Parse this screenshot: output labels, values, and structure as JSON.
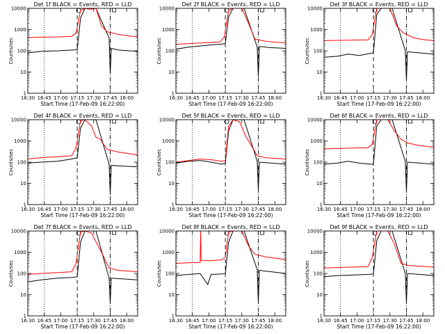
{
  "chart_data": {
    "type": "line",
    "x_start_label": "Start Time (17-Feb-09 16:22:00)",
    "x_ticks": [
      "16:30",
      "16:45",
      "17:00",
      "17:15",
      "17:30",
      "17:45",
      "18:00"
    ],
    "xlim_min": [
      8,
      108
    ],
    "ylim": [
      1,
      10000
    ],
    "yscale": "log",
    "ylabel": "Counts/sec",
    "y_ticks": [
      "1",
      "10",
      "100",
      "1000",
      "10000"
    ],
    "markers": {
      "solid_circle_label": "O",
      "square_label": "□",
      "dotted_min": 23,
      "dashed_min": 53,
      "dashdot_min": 83
    },
    "series_colors": {
      "events": "#000000",
      "lld": "#ff0000"
    },
    "panels": [
      {
        "title": "Det 1f BLACK = Events, RED = LLD",
        "events": [
          [
            8,
            80
          ],
          [
            20,
            95
          ],
          [
            35,
            100
          ],
          [
            50,
            110
          ],
          [
            53,
            115
          ],
          [
            56,
            3500
          ],
          [
            60,
            10000
          ],
          [
            70,
            10000
          ],
          [
            82,
            400
          ],
          [
            83,
            8
          ],
          [
            84,
            130
          ],
          [
            90,
            110
          ],
          [
            100,
            100
          ],
          [
            108,
            95
          ]
        ],
        "lld": [
          [
            8,
            420
          ],
          [
            20,
            440
          ],
          [
            35,
            450
          ],
          [
            48,
            480
          ],
          [
            52,
            700
          ],
          [
            56,
            8000
          ],
          [
            60,
            14000
          ],
          [
            65,
            9000
          ],
          [
            70,
            14000
          ],
          [
            75,
            1500
          ],
          [
            80,
            800
          ],
          [
            90,
            600
          ],
          [
            100,
            500
          ],
          [
            108,
            450
          ]
        ]
      },
      {
        "title": "Det 2f BLACK = Events, RED = LLD",
        "events": [
          [
            8,
            120
          ],
          [
            20,
            150
          ],
          [
            35,
            180
          ],
          [
            50,
            210
          ],
          [
            53,
            220
          ],
          [
            56,
            4000
          ],
          [
            60,
            10000
          ],
          [
            70,
            10000
          ],
          [
            82,
            150
          ],
          [
            83,
            6
          ],
          [
            84,
            160
          ],
          [
            95,
            140
          ],
          [
            108,
            130
          ]
        ],
        "lld": [
          [
            8,
            200
          ],
          [
            20,
            220
          ],
          [
            35,
            240
          ],
          [
            48,
            260
          ],
          [
            52,
            450
          ],
          [
            56,
            8000
          ],
          [
            60,
            14000
          ],
          [
            68,
            10000
          ],
          [
            74,
            2000
          ],
          [
            80,
            350
          ],
          [
            90,
            280
          ],
          [
            100,
            250
          ],
          [
            108,
            240
          ]
        ]
      },
      {
        "title": "Det 3f BLACK = Events, RED = LLD",
        "events": [
          [
            8,
            50
          ],
          [
            20,
            55
          ],
          [
            30,
            70
          ],
          [
            40,
            60
          ],
          [
            50,
            75
          ],
          [
            53,
            80
          ],
          [
            56,
            5000
          ],
          [
            60,
            10000
          ],
          [
            70,
            10000
          ],
          [
            82,
            100
          ],
          [
            83,
            4
          ],
          [
            84,
            90
          ],
          [
            95,
            80
          ],
          [
            108,
            70
          ]
        ],
        "lld": [
          [
            8,
            300
          ],
          [
            20,
            310
          ],
          [
            35,
            320
          ],
          [
            48,
            330
          ],
          [
            52,
            600
          ],
          [
            56,
            10000
          ],
          [
            60,
            14000
          ],
          [
            68,
            10000
          ],
          [
            74,
            1500
          ],
          [
            80,
            700
          ],
          [
            90,
            400
          ],
          [
            100,
            330
          ],
          [
            108,
            300
          ]
        ]
      },
      {
        "title": "Det 4f BLACK = Events, RED = LLD",
        "events": [
          [
            8,
            90
          ],
          [
            20,
            100
          ],
          [
            35,
            110
          ],
          [
            48,
            140
          ],
          [
            53,
            160
          ],
          [
            56,
            4000
          ],
          [
            60,
            10000
          ],
          [
            70,
            10000
          ],
          [
            82,
            80
          ],
          [
            83,
            3
          ],
          [
            84,
            70
          ],
          [
            95,
            65
          ],
          [
            108,
            60
          ]
        ],
        "lld": [
          [
            8,
            140
          ],
          [
            20,
            160
          ],
          [
            35,
            180
          ],
          [
            48,
            200
          ],
          [
            52,
            500
          ],
          [
            56,
            9000
          ],
          [
            60,
            14000
          ],
          [
            66,
            5000
          ],
          [
            70,
            1500
          ],
          [
            74,
            1200
          ],
          [
            80,
            400
          ],
          [
            90,
            300
          ],
          [
            100,
            250
          ],
          [
            108,
            220
          ]
        ]
      },
      {
        "title": "Det 5f BLACK = Events, RED = LLD",
        "events": [
          [
            8,
            90
          ],
          [
            20,
            110
          ],
          [
            30,
            120
          ],
          [
            40,
            100
          ],
          [
            50,
            80
          ],
          [
            53,
            90
          ],
          [
            56,
            3000
          ],
          [
            60,
            10000
          ],
          [
            70,
            10000
          ],
          [
            82,
            110
          ],
          [
            83,
            5
          ],
          [
            84,
            100
          ],
          [
            95,
            90
          ],
          [
            108,
            80
          ]
        ],
        "lld": [
          [
            8,
            100
          ],
          [
            20,
            120
          ],
          [
            30,
            140
          ],
          [
            40,
            130
          ],
          [
            50,
            110
          ],
          [
            53,
            120
          ],
          [
            56,
            5000
          ],
          [
            60,
            14000
          ],
          [
            66,
            8000
          ],
          [
            72,
            1500
          ],
          [
            76,
            700
          ],
          [
            82,
            200
          ],
          [
            90,
            160
          ],
          [
            108,
            140
          ]
        ]
      },
      {
        "title": "Det 6f BLACK = Events, RED = LLD",
        "events": [
          [
            8,
            80
          ],
          [
            20,
            90
          ],
          [
            30,
            110
          ],
          [
            40,
            90
          ],
          [
            50,
            80
          ],
          [
            53,
            80
          ],
          [
            56,
            5000
          ],
          [
            60,
            10000
          ],
          [
            70,
            10000
          ],
          [
            82,
            110
          ],
          [
            83,
            4
          ],
          [
            84,
            100
          ],
          [
            95,
            90
          ],
          [
            108,
            80
          ]
        ],
        "lld": [
          [
            8,
            420
          ],
          [
            20,
            440
          ],
          [
            35,
            460
          ],
          [
            48,
            480
          ],
          [
            52,
            700
          ],
          [
            56,
            10000
          ],
          [
            60,
            14000
          ],
          [
            66,
            10000
          ],
          [
            72,
            3000
          ],
          [
            78,
            1200
          ],
          [
            84,
            800
          ],
          [
            95,
            600
          ],
          [
            108,
            500
          ]
        ]
      },
      {
        "title": "Det 7f BLACK = Events, RED = LLD",
        "events": [
          [
            8,
            40
          ],
          [
            20,
            50
          ],
          [
            35,
            60
          ],
          [
            48,
            65
          ],
          [
            53,
            70
          ],
          [
            56,
            3000
          ],
          [
            60,
            10000
          ],
          [
            70,
            10000
          ],
          [
            82,
            60
          ],
          [
            83,
            4
          ],
          [
            84,
            60
          ],
          [
            95,
            55
          ],
          [
            108,
            50
          ]
        ],
        "lld": [
          [
            8,
            90
          ],
          [
            20,
            100
          ],
          [
            35,
            110
          ],
          [
            48,
            120
          ],
          [
            52,
            300
          ],
          [
            56,
            9000
          ],
          [
            60,
            14000
          ],
          [
            66,
            8000
          ],
          [
            72,
            2000
          ],
          [
            76,
            800
          ],
          [
            82,
            180
          ],
          [
            90,
            140
          ],
          [
            108,
            120
          ]
        ]
      },
      {
        "title": "Det 8f BLACK = Events, RED = LLD",
        "events": [
          [
            8,
            80
          ],
          [
            20,
            90
          ],
          [
            30,
            100
          ],
          [
            37,
            30
          ],
          [
            40,
            90
          ],
          [
            50,
            95
          ],
          [
            53,
            100
          ],
          [
            56,
            3000
          ],
          [
            60,
            10000
          ],
          [
            70,
            10000
          ],
          [
            82,
            150
          ],
          [
            83,
            4
          ],
          [
            84,
            140
          ],
          [
            95,
            120
          ],
          [
            108,
            100
          ]
        ],
        "lld": [
          [
            8,
            300
          ],
          [
            20,
            320
          ],
          [
            30,
            330
          ],
          [
            30.5,
            14000
          ],
          [
            31,
            400
          ],
          [
            40,
            400
          ],
          [
            45,
            420
          ],
          [
            50,
            440
          ],
          [
            53,
            600
          ],
          [
            56,
            9000
          ],
          [
            60,
            14000
          ],
          [
            68,
            10000
          ],
          [
            74,
            2000
          ],
          [
            80,
            800
          ],
          [
            90,
            600
          ],
          [
            108,
            450
          ]
        ]
      },
      {
        "title": "Det 9f BLACK = Events, RED = LLD",
        "events": [
          [
            8,
            70
          ],
          [
            20,
            80
          ],
          [
            35,
            85
          ],
          [
            48,
            90
          ],
          [
            53,
            95
          ],
          [
            56,
            3500
          ],
          [
            60,
            10000
          ],
          [
            70,
            10000
          ],
          [
            82,
            100
          ],
          [
            83,
            4
          ],
          [
            84,
            100
          ],
          [
            95,
            90
          ],
          [
            108,
            80
          ]
        ],
        "lld": [
          [
            8,
            180
          ],
          [
            20,
            190
          ],
          [
            35,
            200
          ],
          [
            48,
            210
          ],
          [
            52,
            600
          ],
          [
            56,
            10000
          ],
          [
            60,
            14000
          ],
          [
            66,
            10000
          ],
          [
            72,
            2500
          ],
          [
            78,
            300
          ],
          [
            84,
            240
          ],
          [
            95,
            220
          ],
          [
            108,
            200
          ]
        ]
      }
    ]
  }
}
